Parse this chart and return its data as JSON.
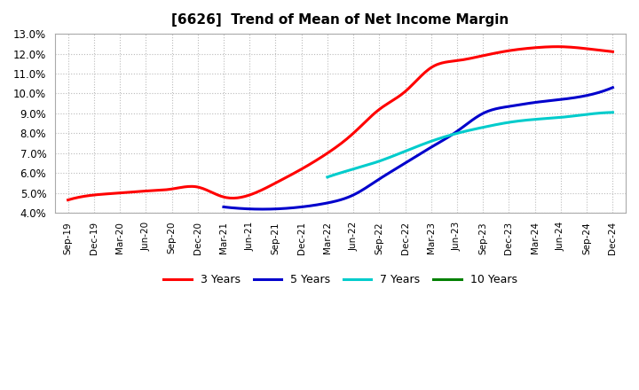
{
  "title": "[6626]  Trend of Mean of Net Income Margin",
  "ylim": [
    0.04,
    0.13
  ],
  "yticks": [
    0.04,
    0.05,
    0.06,
    0.07,
    0.08,
    0.09,
    0.1,
    0.11,
    0.12,
    0.13
  ],
  "background_color": "#ffffff",
  "grid_color": "#aaaaaa",
  "xtick_labels": [
    "Sep-19",
    "Dec-19",
    "Mar-20",
    "Jun-20",
    "Sep-20",
    "Dec-20",
    "Mar-21",
    "Jun-21",
    "Sep-21",
    "Dec-21",
    "Mar-22",
    "Jun-22",
    "Sep-22",
    "Dec-22",
    "Mar-23",
    "Jun-23",
    "Sep-23",
    "Dec-23",
    "Mar-24",
    "Jun-24",
    "Sep-24",
    "Dec-24"
  ],
  "series": [
    {
      "name": "3 Years",
      "color": "#ff0000",
      "x_indices": [
        0,
        1,
        2,
        3,
        4,
        5,
        6,
        7,
        8,
        9,
        10,
        11,
        12,
        13,
        14,
        15,
        16,
        17,
        18,
        19,
        20,
        21
      ],
      "values": [
        0.0465,
        0.049,
        0.05,
        0.051,
        0.052,
        0.053,
        0.048,
        0.049,
        0.055,
        0.062,
        0.07,
        0.08,
        0.092,
        0.101,
        0.113,
        0.1165,
        0.119,
        0.1215,
        0.123,
        0.1235,
        0.1225,
        0.121
      ]
    },
    {
      "name": "5 Years",
      "color": "#0000cc",
      "x_indices": [
        6,
        7,
        8,
        9,
        10,
        11,
        12,
        13,
        14,
        15,
        16,
        17,
        18,
        19,
        20,
        21
      ],
      "values": [
        0.043,
        0.042,
        0.042,
        0.043,
        0.045,
        0.049,
        0.057,
        0.065,
        0.073,
        0.081,
        0.09,
        0.0935,
        0.0955,
        0.097,
        0.099,
        0.103
      ]
    },
    {
      "name": "7 Years",
      "color": "#00cccc",
      "x_indices": [
        10,
        11,
        12,
        13,
        14,
        15,
        16,
        17,
        18,
        19,
        20,
        21
      ],
      "values": [
        0.058,
        0.062,
        0.066,
        0.071,
        0.076,
        0.08,
        0.083,
        0.0855,
        0.087,
        0.088,
        0.0895,
        0.0905
      ]
    },
    {
      "name": "10 Years",
      "color": "#008000",
      "x_indices": [],
      "values": []
    }
  ],
  "legend_entries": [
    "3 Years",
    "5 Years",
    "7 Years",
    "10 Years"
  ],
  "legend_colors": [
    "#ff0000",
    "#0000cc",
    "#00cccc",
    "#008000"
  ]
}
